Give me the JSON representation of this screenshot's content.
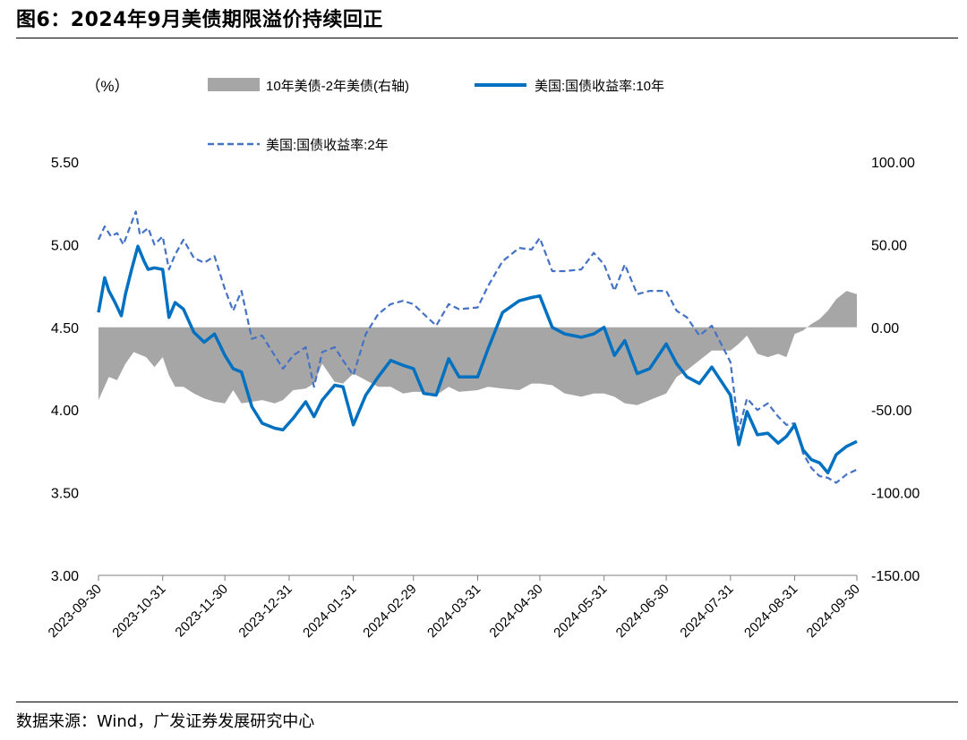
{
  "figure": {
    "title": "图6：2024年9月美债期限溢价持续回正",
    "source": "数据来源：Wind，广发证券发展研究中心"
  },
  "chart_data": {
    "type": "line",
    "left_axis": {
      "unit_label": "（%）",
      "ticks": [
        "5.50",
        "5.00",
        "4.50",
        "4.00",
        "3.50",
        "3.00"
      ],
      "range": [
        3.0,
        5.5
      ]
    },
    "right_axis": {
      "ticks": [
        "100.00",
        "50.00",
        "0.00",
        "-50.00",
        "-100.00",
        "-150.00"
      ],
      "range": [
        -150,
        100
      ]
    },
    "x_ticks": [
      "2023-09-30",
      "2023-10-31",
      "2023-11-30",
      "2023-12-31",
      "2024-01-31",
      "2024-02-29",
      "2024-03-31",
      "2024-04-30",
      "2024-05-31",
      "2024-06-30",
      "2024-07-31",
      "2024-08-31",
      "2024-09-30"
    ],
    "x_range": [
      "2023-09-30",
      "2024-09-30"
    ],
    "legend": {
      "placement": "top",
      "spread": "10年美债-2年美债(右轴)",
      "y10": "美国:国债收益率:10年",
      "y2": "美国:国债收益率:2年"
    },
    "colors": {
      "spread": "#a6a6a6",
      "y10": "#0070c0",
      "y2": "#4472c4"
    },
    "series": [
      {
        "name": "10年美债-2年美债(右轴)",
        "type": "area",
        "axis": "right",
        "x": [
          "2023-09-30",
          "2023-10-05",
          "2023-10-09",
          "2023-10-13",
          "2023-10-17",
          "2023-10-19",
          "2023-10-23",
          "2023-10-27",
          "2023-10-31",
          "2023-11-03",
          "2023-11-06",
          "2023-11-10",
          "2023-11-15",
          "2023-11-20",
          "2023-11-25",
          "2023-11-30",
          "2023-12-04",
          "2023-12-08",
          "2023-12-13",
          "2023-12-18",
          "2023-12-24",
          "2023-12-28",
          "2024-01-02",
          "2024-01-08",
          "2024-01-12",
          "2024-01-16",
          "2024-01-22",
          "2024-01-26",
          "2024-01-31",
          "2024-02-06",
          "2024-02-12",
          "2024-02-18",
          "2024-02-24",
          "2024-02-29",
          "2024-03-05",
          "2024-03-11",
          "2024-03-17",
          "2024-03-22",
          "2024-03-31",
          "2024-04-05",
          "2024-04-12",
          "2024-04-20",
          "2024-04-26",
          "2024-04-30",
          "2024-05-06",
          "2024-05-12",
          "2024-05-20",
          "2024-05-26",
          "2024-05-31",
          "2024-06-05",
          "2024-06-10",
          "2024-06-16",
          "2024-06-22",
          "2024-06-30",
          "2024-07-05",
          "2024-07-10",
          "2024-07-16",
          "2024-07-22",
          "2024-07-31",
          "2024-08-04",
          "2024-08-08",
          "2024-08-13",
          "2024-08-18",
          "2024-08-23",
          "2024-08-27",
          "2024-08-31",
          "2024-09-04",
          "2024-09-08",
          "2024-09-12",
          "2024-09-16",
          "2024-09-20",
          "2024-09-25",
          "2024-09-30"
        ],
        "values": [
          -44,
          -30,
          -32,
          -22,
          -15,
          -16,
          -18,
          -24,
          -18,
          -29,
          -36,
          -36,
          -40,
          -43,
          -45,
          -46,
          -38,
          -46,
          -45,
          -44,
          -46,
          -44,
          -38,
          -37,
          -34,
          -22,
          -33,
          -34,
          -28,
          -32,
          -36,
          -36,
          -40,
          -39,
          -39,
          -41,
          -36,
          -39,
          -38,
          -36,
          -37,
          -38,
          -34,
          -34,
          -35,
          -40,
          -42,
          -40,
          -40,
          -42,
          -46,
          -47,
          -44,
          -40,
          -30,
          -26,
          -20,
          -14,
          -14,
          -10,
          -5,
          -16,
          -18,
          -16,
          -18,
          -4,
          -2,
          2,
          5,
          10,
          17,
          22,
          20
        ]
      },
      {
        "name": "美国:国债收益率:10年",
        "type": "line",
        "axis": "left",
        "x": [
          "2023-09-30",
          "2023-10-03",
          "2023-10-05",
          "2023-10-08",
          "2023-10-11",
          "2023-10-13",
          "2023-10-16",
          "2023-10-19",
          "2023-10-22",
          "2023-10-24",
          "2023-10-27",
          "2023-10-31",
          "2023-11-03",
          "2023-11-06",
          "2023-11-10",
          "2023-11-15",
          "2023-11-20",
          "2023-11-25",
          "2023-11-30",
          "2023-12-04",
          "2023-12-08",
          "2023-12-13",
          "2023-12-18",
          "2023-12-24",
          "2023-12-28",
          "2024-01-02",
          "2024-01-08",
          "2024-01-12",
          "2024-01-16",
          "2024-01-22",
          "2024-01-26",
          "2024-01-31",
          "2024-02-06",
          "2024-02-12",
          "2024-02-18",
          "2024-02-24",
          "2024-02-29",
          "2024-03-05",
          "2024-03-11",
          "2024-03-17",
          "2024-03-22",
          "2024-03-31",
          "2024-04-05",
          "2024-04-12",
          "2024-04-20",
          "2024-04-26",
          "2024-04-30",
          "2024-05-06",
          "2024-05-12",
          "2024-05-20",
          "2024-05-26",
          "2024-05-31",
          "2024-06-05",
          "2024-06-10",
          "2024-06-16",
          "2024-06-22",
          "2024-06-30",
          "2024-07-05",
          "2024-07-10",
          "2024-07-16",
          "2024-07-22",
          "2024-07-31",
          "2024-08-04",
          "2024-08-08",
          "2024-08-13",
          "2024-08-18",
          "2024-08-23",
          "2024-08-27",
          "2024-08-31",
          "2024-09-04",
          "2024-09-08",
          "2024-09-12",
          "2024-09-16",
          "2024-09-20",
          "2024-09-25",
          "2024-09-30"
        ],
        "values": [
          4.59,
          4.8,
          4.72,
          4.65,
          4.57,
          4.7,
          4.85,
          4.99,
          4.9,
          4.85,
          4.86,
          4.85,
          4.56,
          4.65,
          4.61,
          4.47,
          4.41,
          4.46,
          4.33,
          4.25,
          4.23,
          4.02,
          3.92,
          3.89,
          3.88,
          3.95,
          4.05,
          3.96,
          4.06,
          4.15,
          4.14,
          3.91,
          4.09,
          4.2,
          4.3,
          4.27,
          4.25,
          4.1,
          4.09,
          4.31,
          4.2,
          4.2,
          4.37,
          4.59,
          4.66,
          4.68,
          4.69,
          4.5,
          4.46,
          4.44,
          4.46,
          4.5,
          4.33,
          4.42,
          4.22,
          4.25,
          4.4,
          4.28,
          4.2,
          4.16,
          4.26,
          4.09,
          3.79,
          3.99,
          3.85,
          3.86,
          3.8,
          3.84,
          3.91,
          3.76,
          3.7,
          3.68,
          3.62,
          3.73,
          3.78,
          3.81
        ]
      },
      {
        "name": "美国:国债收益率:2年",
        "type": "line",
        "axis": "left",
        "x": [
          "2023-09-30",
          "2023-10-03",
          "2023-10-06",
          "2023-10-09",
          "2023-10-12",
          "2023-10-15",
          "2023-10-18",
          "2023-10-20",
          "2023-10-24",
          "2023-10-27",
          "2023-10-31",
          "2023-11-03",
          "2023-11-06",
          "2023-11-10",
          "2023-11-15",
          "2023-11-20",
          "2023-11-25",
          "2023-11-30",
          "2023-12-04",
          "2023-12-08",
          "2023-12-13",
          "2023-12-18",
          "2023-12-24",
          "2023-12-28",
          "2024-01-02",
          "2024-01-08",
          "2024-01-12",
          "2024-01-16",
          "2024-01-22",
          "2024-01-26",
          "2024-01-31",
          "2024-02-06",
          "2024-02-12",
          "2024-02-18",
          "2024-02-24",
          "2024-02-29",
          "2024-03-05",
          "2024-03-11",
          "2024-03-17",
          "2024-03-22",
          "2024-03-31",
          "2024-04-05",
          "2024-04-12",
          "2024-04-20",
          "2024-04-26",
          "2024-04-30",
          "2024-05-06",
          "2024-05-12",
          "2024-05-20",
          "2024-05-26",
          "2024-05-31",
          "2024-06-05",
          "2024-06-10",
          "2024-06-16",
          "2024-06-22",
          "2024-06-30",
          "2024-07-05",
          "2024-07-10",
          "2024-07-16",
          "2024-07-22",
          "2024-07-31",
          "2024-08-04",
          "2024-08-08",
          "2024-08-13",
          "2024-08-18",
          "2024-08-23",
          "2024-08-27",
          "2024-08-31",
          "2024-09-04",
          "2024-09-08",
          "2024-09-12",
          "2024-09-16",
          "2024-09-20",
          "2024-09-25",
          "2024-09-30"
        ],
        "values": [
          5.03,
          5.11,
          5.05,
          5.07,
          5.0,
          5.1,
          5.2,
          5.06,
          5.1,
          5.0,
          5.05,
          4.85,
          4.94,
          5.03,
          4.92,
          4.89,
          4.93,
          4.73,
          4.6,
          4.72,
          4.43,
          4.45,
          4.33,
          4.25,
          4.33,
          4.38,
          4.14,
          4.35,
          4.38,
          4.3,
          4.21,
          4.46,
          4.58,
          4.64,
          4.66,
          4.64,
          4.58,
          4.51,
          4.64,
          4.61,
          4.62,
          4.75,
          4.9,
          4.98,
          4.97,
          5.04,
          4.84,
          4.84,
          4.85,
          4.95,
          4.88,
          4.72,
          4.88,
          4.7,
          4.72,
          4.72,
          4.6,
          4.56,
          4.45,
          4.51,
          4.29,
          3.88,
          4.07,
          4.0,
          4.04,
          3.96,
          3.91,
          3.92,
          3.74,
          3.65,
          3.6,
          3.59,
          3.56,
          3.61,
          3.64
        ]
      }
    ]
  }
}
